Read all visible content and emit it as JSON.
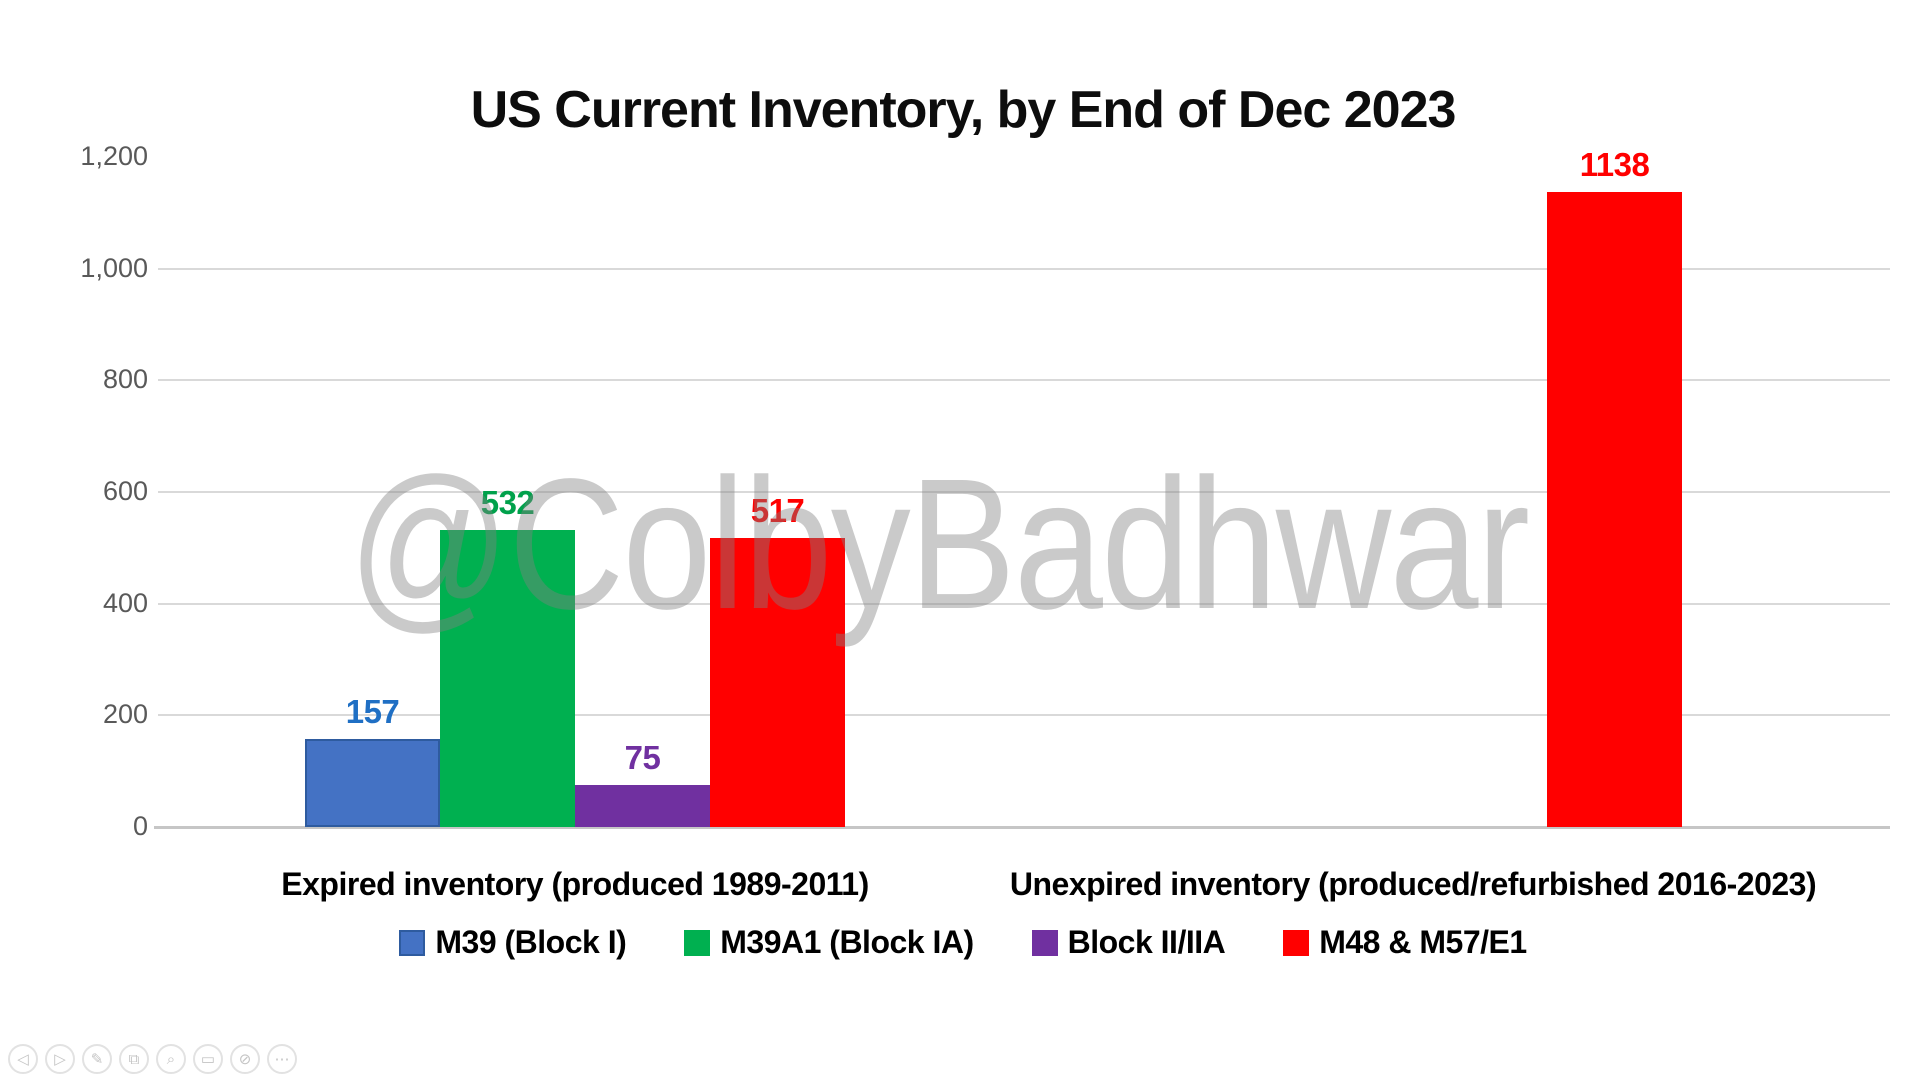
{
  "chart_data": {
    "type": "bar",
    "title": "US Current Inventory, by End of Dec 2023",
    "categories": [
      "Expired inventory (produced 1989-2011)",
      "Unexpired inventory (produced/refurbished 2016-2023)"
    ],
    "series": [
      {
        "name": "M39 (Block I)",
        "color": "#4472C4",
        "border_color": "#2E5B9F",
        "label_color": "#1F6FC4",
        "values": [
          157,
          null
        ]
      },
      {
        "name": "M39A1 (Block IA)",
        "color": "#00B050",
        "border_color": null,
        "label_color": "#00A14B",
        "values": [
          532,
          null
        ]
      },
      {
        "name": "Block II/IIA",
        "color": "#7030A0",
        "border_color": null,
        "label_color": "#7030A0",
        "values": [
          75,
          null
        ]
      },
      {
        "name": "M48 & M57/E1",
        "color": "#FF0000",
        "border_color": null,
        "label_color": "#FF0000",
        "values": [
          517,
          1138
        ]
      }
    ],
    "ylim": [
      0,
      1200
    ],
    "y_ticks": [
      {
        "value": 0,
        "label": "0"
      },
      {
        "value": 200,
        "label": "200"
      },
      {
        "value": 400,
        "label": "400"
      },
      {
        "value": 600,
        "label": "600"
      },
      {
        "value": 800,
        "label": "800"
      },
      {
        "value": 1000,
        "label": "1,000"
      },
      {
        "value": 1200,
        "label": "1,200"
      }
    ],
    "gridlines_at": [
      200,
      400,
      600,
      800,
      1000
    ],
    "grid": "horizontal",
    "legend_position": "bottom",
    "data_labels": true
  },
  "watermark": {
    "text": "@ColbyBadhwar"
  },
  "colors": {
    "gridline": "#D9D9D9",
    "axis_line": "#C6C6C6",
    "tick_text": "#595959",
    "title_text": "#0D0D0D",
    "watermark_gray": "#808080"
  },
  "toolbar": {
    "items": [
      {
        "name": "previous-slide-button",
        "glyph": "◁"
      },
      {
        "name": "next-slide-button",
        "glyph": "▷"
      },
      {
        "name": "pen-button",
        "glyph": "✎"
      },
      {
        "name": "see-all-slides-button",
        "glyph": "⧉"
      },
      {
        "name": "zoom-slide-button",
        "glyph": "⌕"
      },
      {
        "name": "captions-button",
        "glyph": "▭"
      },
      {
        "name": "camera-button",
        "glyph": "⊘"
      },
      {
        "name": "more-options-button",
        "glyph": "⋯"
      }
    ]
  }
}
